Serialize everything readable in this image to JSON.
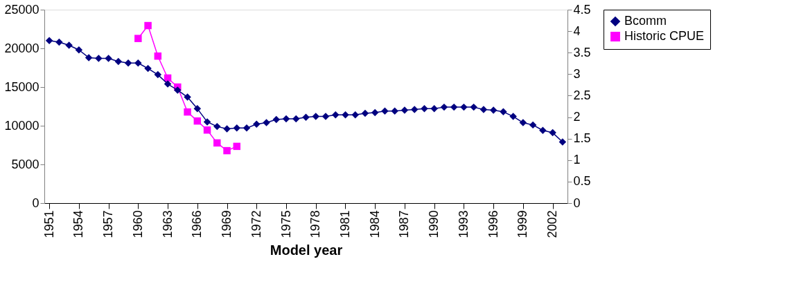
{
  "chart_data": {
    "type": "line",
    "xlabel": "Model year",
    "x": [
      1951,
      1952,
      1953,
      1954,
      1955,
      1956,
      1957,
      1958,
      1959,
      1960,
      1961,
      1962,
      1963,
      1964,
      1965,
      1966,
      1967,
      1968,
      1969,
      1970,
      1971,
      1972,
      1973,
      1974,
      1975,
      1976,
      1977,
      1978,
      1979,
      1980,
      1981,
      1982,
      1983,
      1984,
      1985,
      1986,
      1987,
      1988,
      1989,
      1990,
      1991,
      1992,
      1993,
      1994,
      1995,
      1996,
      1997,
      1998,
      1999,
      2000,
      2001,
      2002,
      2003
    ],
    "xlim": [
      1950.5,
      2003.5
    ],
    "xticks": [
      1951,
      1954,
      1957,
      1960,
      1963,
      1966,
      1969,
      1972,
      1975,
      1978,
      1981,
      1984,
      1987,
      1990,
      1993,
      1996,
      1999,
      2002
    ],
    "ylim": [
      0,
      25000
    ],
    "yticks": [
      0,
      5000,
      10000,
      15000,
      20000,
      25000
    ],
    "y2lim": [
      0,
      4.5
    ],
    "y2ticks": [
      0,
      0.5,
      1,
      1.5,
      2,
      2.5,
      3,
      3.5,
      4,
      4.5
    ],
    "series": [
      {
        "name": "Bcomm",
        "color": "#000080",
        "marker": "diamond",
        "values": [
          21000,
          20800,
          20400,
          19800,
          18800,
          18700,
          18700,
          18300,
          18100,
          18100,
          17400,
          16600,
          15400,
          14600,
          13700,
          12200,
          10500,
          9900,
          9600,
          9700,
          9700,
          10200,
          10400,
          10800,
          10900,
          10900,
          11100,
          11200,
          11200,
          11400,
          11400,
          11400,
          11600,
          11700,
          11900,
          11900,
          12000,
          12100,
          12200,
          12200,
          12400,
          12400,
          12400,
          12400,
          12100,
          12000,
          11800,
          11200,
          10400,
          10100,
          9400,
          9100,
          7900
        ]
      },
      {
        "name": "Historic CPUE",
        "color": "#ff00ff",
        "marker": "square",
        "axis": "y2",
        "x": [
          1960,
          1961,
          1962,
          1963,
          1964,
          1965,
          1966,
          1967,
          1968,
          1969,
          1970
        ],
        "values": [
          3.83,
          4.13,
          3.42,
          2.91,
          2.7,
          2.12,
          1.91,
          1.7,
          1.4,
          1.22,
          1.32
        ]
      }
    ],
    "legend": "right",
    "grid": false
  }
}
